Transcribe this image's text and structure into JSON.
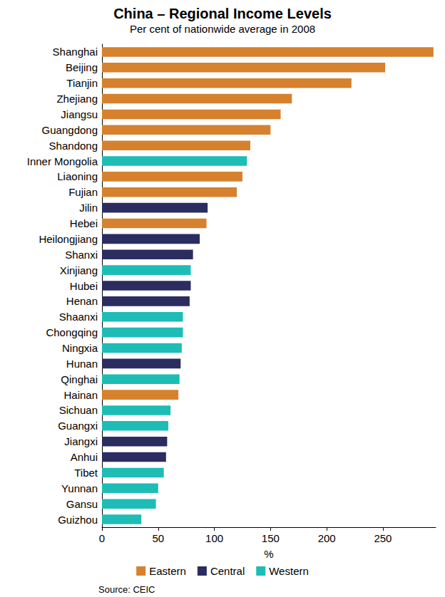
{
  "chart_data": {
    "type": "bar",
    "orientation": "horizontal",
    "title": "China – Regional Income Levels",
    "subtitle": "Per cent of nationwide average in 2008",
    "x_label": "%",
    "source": "Source: CEIC",
    "categories": [
      "Shanghai",
      "Beijing",
      "Tianjin",
      "Zhejiang",
      "Jiangsu",
      "Guangdong",
      "Shandong",
      "Inner Mongolia",
      "Liaoning",
      "Fujian",
      "Jilin",
      "Hebei",
      "Heilongjiang",
      "Shanxi",
      "Xinjiang",
      "Hubei",
      "Henan",
      "Shaanxi",
      "Chongqing",
      "Ningxia",
      "Hunan",
      "Qinghai",
      "Hainan",
      "Sichuan",
      "Guangxi",
      "Jiangxi",
      "Anhui",
      "Tibet",
      "Yunnan",
      "Gansu",
      "Guizhou"
    ],
    "series": [
      {
        "name": "Eastern",
        "color": "#d6812e",
        "values": [
          295,
          252,
          222,
          169,
          159,
          150,
          132,
          null,
          125,
          120,
          null,
          93,
          null,
          null,
          null,
          null,
          null,
          null,
          null,
          null,
          null,
          null,
          68,
          null,
          null,
          null,
          null,
          null,
          null,
          null,
          null
        ]
      },
      {
        "name": "Central",
        "color": "#2b2c5f",
        "values": [
          null,
          null,
          null,
          null,
          null,
          null,
          null,
          null,
          null,
          null,
          94,
          null,
          87,
          81,
          null,
          79,
          78,
          null,
          null,
          null,
          70,
          null,
          null,
          null,
          null,
          58,
          57,
          null,
          null,
          null,
          null
        ]
      },
      {
        "name": "Western",
        "color": "#1dbdb6",
        "values": [
          null,
          null,
          null,
          null,
          null,
          null,
          null,
          129,
          null,
          null,
          null,
          null,
          null,
          null,
          79,
          null,
          null,
          72,
          72,
          71,
          null,
          69,
          null,
          61,
          59,
          null,
          null,
          55,
          50,
          48,
          35
        ]
      }
    ],
    "xlim": [
      0,
      297
    ],
    "xticks": [
      0,
      50,
      100,
      150,
      200,
      250
    ],
    "grid": false,
    "legend": "bottom"
  }
}
